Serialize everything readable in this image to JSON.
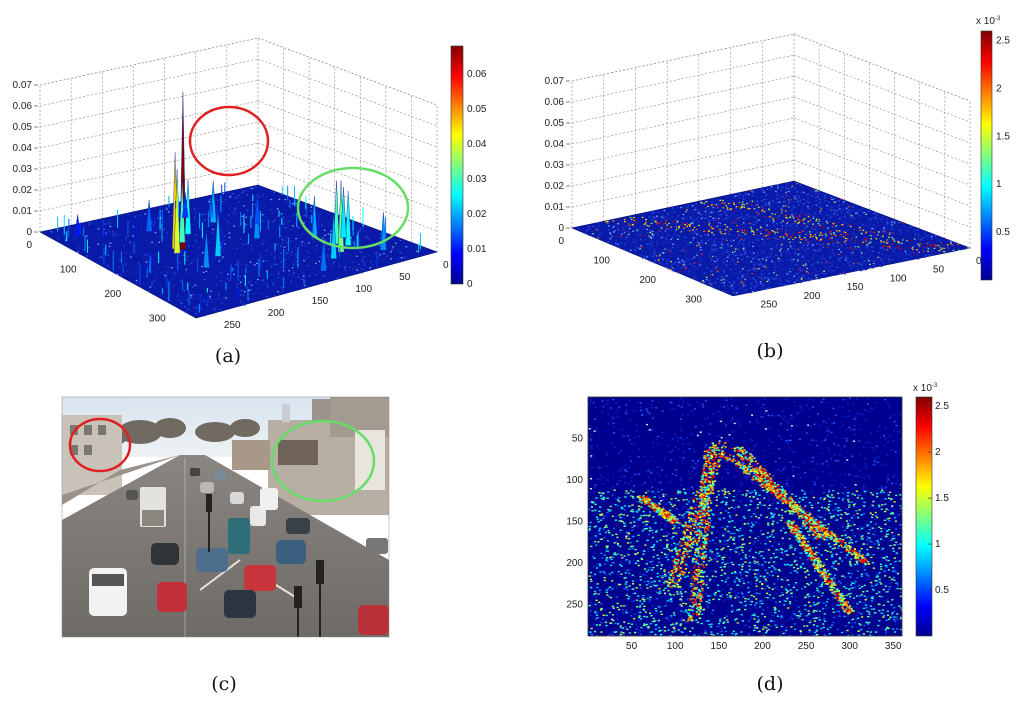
{
  "figure": {
    "panel_labels": [
      "(a)",
      "(b)",
      "(c)",
      "(d)"
    ]
  },
  "chart_data": [
    {
      "panel": "(a)",
      "type": "surface3d",
      "colormap": "jet",
      "z_ticks": [
        "0",
        "0.01",
        "0.02",
        "0.03",
        "0.04",
        "0.05",
        "0.06",
        "0.07"
      ],
      "left_axis_ticks": [
        "0",
        "100",
        "200",
        "300"
      ],
      "right_axis_ticks": [
        "0",
        "50",
        "100",
        "150",
        "200",
        "250"
      ],
      "colorbar_ticks": [
        "0",
        "0.01",
        "0.02",
        "0.03",
        "0.04",
        "0.05",
        "0.06"
      ],
      "colorbar_range": [
        0,
        0.068
      ],
      "peaks": [
        {
          "i": 0.42,
          "j": 0.34,
          "z": 0.075
        },
        {
          "i": 0.4,
          "j": 0.32,
          "z": 0.046
        },
        {
          "i": 0.44,
          "j": 0.3,
          "z": 0.04
        },
        {
          "i": 0.36,
          "j": 0.38,
          "z": 0.03
        },
        {
          "i": 0.3,
          "j": 0.45,
          "z": 0.026
        },
        {
          "i": 0.55,
          "j": 0.4,
          "z": 0.022
        },
        {
          "i": 0.62,
          "j": 0.3,
          "z": 0.018
        },
        {
          "i": 0.25,
          "j": 0.6,
          "z": 0.02
        },
        {
          "i": 0.2,
          "j": 0.35,
          "z": 0.015
        },
        {
          "i": 0.7,
          "j": 0.8,
          "z": 0.03
        },
        {
          "i": 0.74,
          "j": 0.82,
          "z": 0.026
        },
        {
          "i": 0.78,
          "j": 0.76,
          "z": 0.034
        },
        {
          "i": 0.66,
          "j": 0.86,
          "z": 0.024
        },
        {
          "i": 0.82,
          "j": 0.7,
          "z": 0.022
        },
        {
          "i": 0.86,
          "j": 0.88,
          "z": 0.018
        },
        {
          "i": 0.6,
          "j": 0.78,
          "z": 0.02
        },
        {
          "i": 0.9,
          "j": 0.6,
          "z": 0.016
        },
        {
          "i": 0.1,
          "j": 0.1,
          "z": 0.01
        },
        {
          "i": 0.48,
          "j": 0.62,
          "z": 0.018
        },
        {
          "i": 0.15,
          "j": 0.55,
          "z": 0.012
        },
        {
          "i": 0.35,
          "j": 0.72,
          "z": 0.014
        }
      ],
      "highlights": [
        {
          "color": "#e02020"
        },
        {
          "color": "#66dd66"
        }
      ]
    },
    {
      "panel": "(b)",
      "type": "surface3d",
      "colormap": "jet",
      "z_ticks": [
        "0",
        "0.01",
        "0.02",
        "0.03",
        "0.04",
        "0.05",
        "0.06",
        "0.07"
      ],
      "left_axis_ticks": [
        "0",
        "100",
        "200",
        "300"
      ],
      "right_axis_ticks": [
        "0",
        "50",
        "100",
        "150",
        "200",
        "250"
      ],
      "colorbar_ticks": [
        "0.5",
        "1",
        "1.5",
        "2",
        "2.5"
      ],
      "colorbar_exponent": "x 10",
      "colorbar_exponent_power": "-3",
      "colorbar_range": [
        0,
        0.0026
      ]
    },
    {
      "panel": "(d)",
      "type": "heatmap",
      "colormap": "jet",
      "x_ticks": [
        "50",
        "100",
        "150",
        "200",
        "250",
        "300",
        "350"
      ],
      "y_ticks": [
        "50",
        "100",
        "150",
        "200",
        "250"
      ],
      "xlim": [
        0,
        360
      ],
      "ylim": [
        0,
        288
      ],
      "colorbar_ticks": [
        "0.5",
        "1",
        "1.5",
        "2",
        "2.5"
      ],
      "colorbar_exponent": "x 10",
      "colorbar_exponent_power": "-3",
      "colorbar_range": [
        0,
        0.0026
      ],
      "streaks": [
        {
          "from": [
            150,
            55
          ],
          "to": [
            95,
            230
          ],
          "width": 18
        },
        {
          "from": [
            140,
            60
          ],
          "to": [
            120,
            270
          ],
          "width": 14
        },
        {
          "from": [
            170,
            60
          ],
          "to": [
            270,
            170
          ],
          "width": 16
        },
        {
          "from": [
            160,
            70
          ],
          "to": [
            320,
            200
          ],
          "width": 12
        },
        {
          "from": [
            60,
            120
          ],
          "to": [
            100,
            150
          ],
          "width": 10
        },
        {
          "from": [
            230,
            150
          ],
          "to": [
            300,
            260
          ],
          "width": 10
        }
      ]
    }
  ],
  "photo": {
    "panel": "(c)",
    "highlights": [
      {
        "color": "#e02020"
      },
      {
        "color": "#66dd66"
      }
    ]
  }
}
